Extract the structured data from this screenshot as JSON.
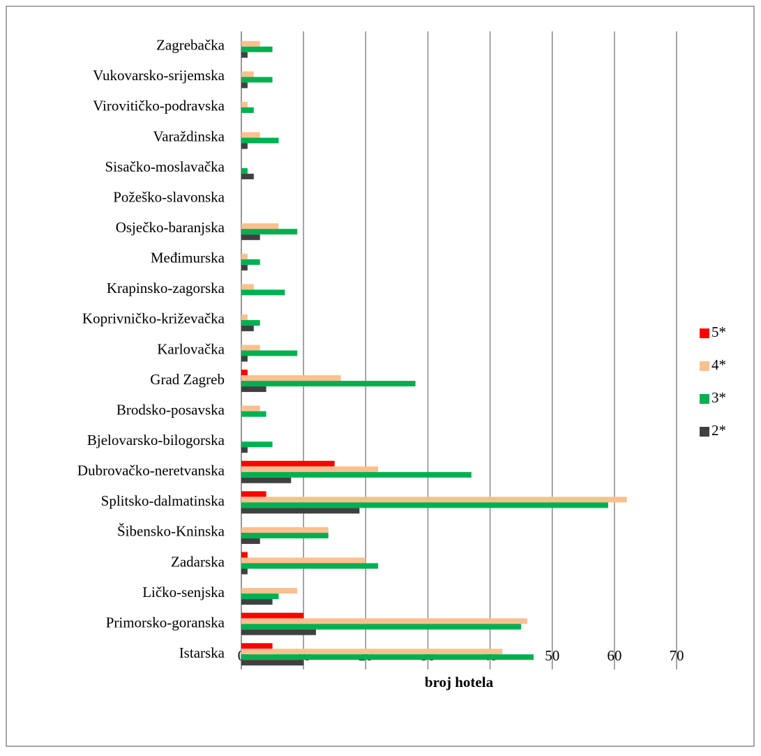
{
  "chart_data": {
    "type": "bar",
    "orientation": "horizontal",
    "xlabel": "broj hotela",
    "categories": [
      "Istarska",
      "Primorsko-goranska",
      "Ličko-senjska",
      "Zadarska",
      "Šibensko-Kninska",
      "Splitsko-dalmatinska",
      "Dubrovačko-neretvanska",
      "Bjelovarsko-bilogorska",
      "Brodsko-posavska",
      "Grad Zagreb",
      "Karlovačka",
      "Koprivničko-križevačka",
      "Krapinsko-zagorska",
      "Međimurska",
      "Osječko-baranjska",
      "Požeško-slavonska",
      "Sisačko-moslavačka",
      "Varaždinska",
      "Virovitičko-podravska",
      "Vukovarsko-srijemska",
      "Zagrebačka"
    ],
    "series": [
      {
        "name": "5*",
        "color": "#ff0000",
        "values": [
          5,
          10,
          0,
          1,
          0,
          4,
          15,
          0,
          0,
          1,
          0,
          0,
          0,
          0,
          0,
          0,
          0,
          0,
          0,
          0,
          0
        ]
      },
      {
        "name": "4*",
        "color": "#fac090",
        "values": [
          42,
          46,
          9,
          20,
          14,
          62,
          22,
          0,
          3,
          16,
          3,
          1,
          2,
          1,
          6,
          0,
          0,
          3,
          1,
          2,
          3
        ]
      },
      {
        "name": "3*",
        "color": "#00b050",
        "values": [
          47,
          45,
          6,
          22,
          14,
          59,
          37,
          5,
          4,
          28,
          9,
          3,
          7,
          3,
          9,
          0,
          1,
          6,
          2,
          5,
          5
        ]
      },
      {
        "name": "2*",
        "color": "#404040",
        "values": [
          10,
          12,
          5,
          1,
          3,
          19,
          8,
          1,
          0,
          4,
          1,
          2,
          0,
          1,
          3,
          0,
          2,
          1,
          0,
          1,
          1
        ]
      }
    ],
    "xlim": [
      0,
      70
    ],
    "xticks": [
      0,
      10,
      20,
      30,
      40,
      50,
      60,
      70
    ],
    "grid": true,
    "legend": "right"
  }
}
